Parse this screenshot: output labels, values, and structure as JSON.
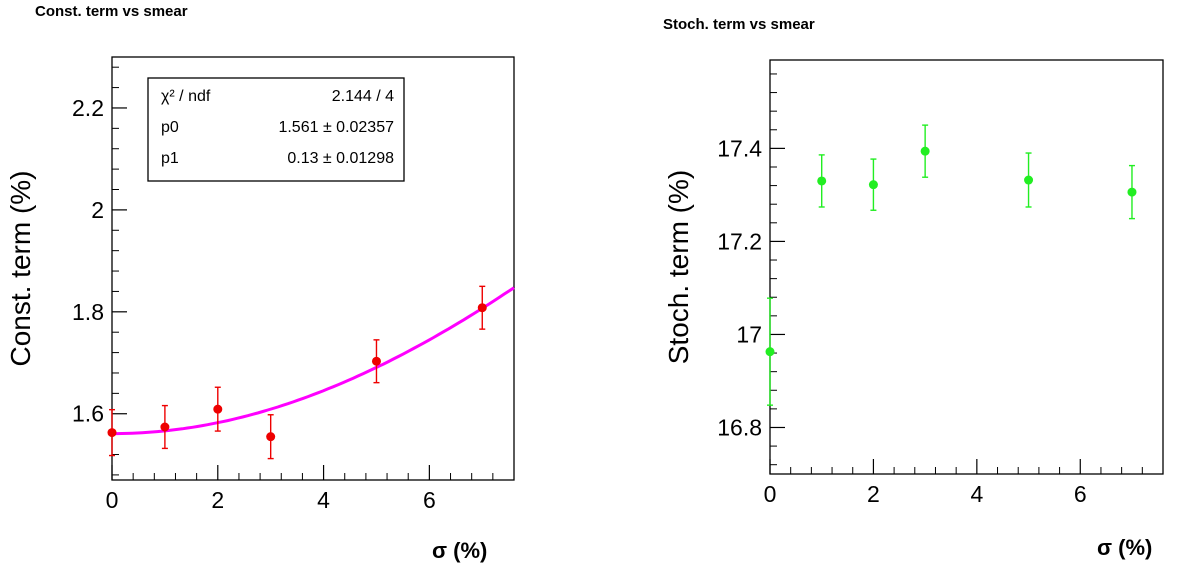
{
  "chart_data": [
    {
      "type": "scatter",
      "title": "Const. term vs smear",
      "xlabel": "σ (%)",
      "ylabel": "Const. term (%)",
      "xlim": [
        0,
        7.6
      ],
      "ylim": [
        1.47,
        2.3
      ],
      "xticks": [
        0,
        2,
        4,
        6
      ],
      "yticks": [
        1.6,
        1.8,
        2,
        2.2
      ],
      "xtick_labels": [
        "0",
        "2",
        "4",
        "6"
      ],
      "ytick_labels": [
        "1.6",
        "1.8",
        "2",
        "2.2"
      ],
      "grid": false,
      "colors": {
        "points": "#ee0000",
        "fit": "#ff00ff"
      },
      "series": [
        {
          "x": [
            0,
            1,
            2,
            3,
            5,
            7
          ],
          "y": [
            1.563,
            1.574,
            1.609,
            1.555,
            1.703,
            1.808
          ],
          "yerr": [
            0.045,
            0.042,
            0.043,
            0.043,
            0.042,
            0.042
          ]
        }
      ],
      "fit": {
        "function": "sqrt(p0^2 + (p1*x)^2)",
        "p0": 1.561,
        "p1": 0.13
      },
      "stats_box": {
        "rows": [
          {
            "label": "χ² / ndf",
            "value": "2.144 / 4"
          },
          {
            "label": "p0",
            "value": "1.561 ± 0.02357"
          },
          {
            "label": "p1",
            "value": "0.13 ± 0.01298"
          }
        ]
      }
    },
    {
      "type": "scatter",
      "title": "Stoch. term vs smear",
      "xlabel": "σ (%)",
      "ylabel": "Stoch. term (%)",
      "xlim": [
        0,
        7.6
      ],
      "ylim": [
        16.7,
        17.59
      ],
      "xticks": [
        0,
        2,
        4,
        6
      ],
      "yticks": [
        16.8,
        17,
        17.2,
        17.4
      ],
      "xtick_labels": [
        "0",
        "2",
        "4",
        "6"
      ],
      "ytick_labels": [
        "16.8",
        "17",
        "17.2",
        "17.4"
      ],
      "grid": false,
      "colors": {
        "points": "#22ee22"
      },
      "series": [
        {
          "x": [
            0,
            1,
            2,
            3,
            5,
            7
          ],
          "y": [
            16.963,
            17.33,
            17.322,
            17.394,
            17.332,
            17.306
          ],
          "yerr": [
            0.115,
            0.056,
            0.055,
            0.056,
            0.058,
            0.057
          ]
        }
      ]
    }
  ]
}
